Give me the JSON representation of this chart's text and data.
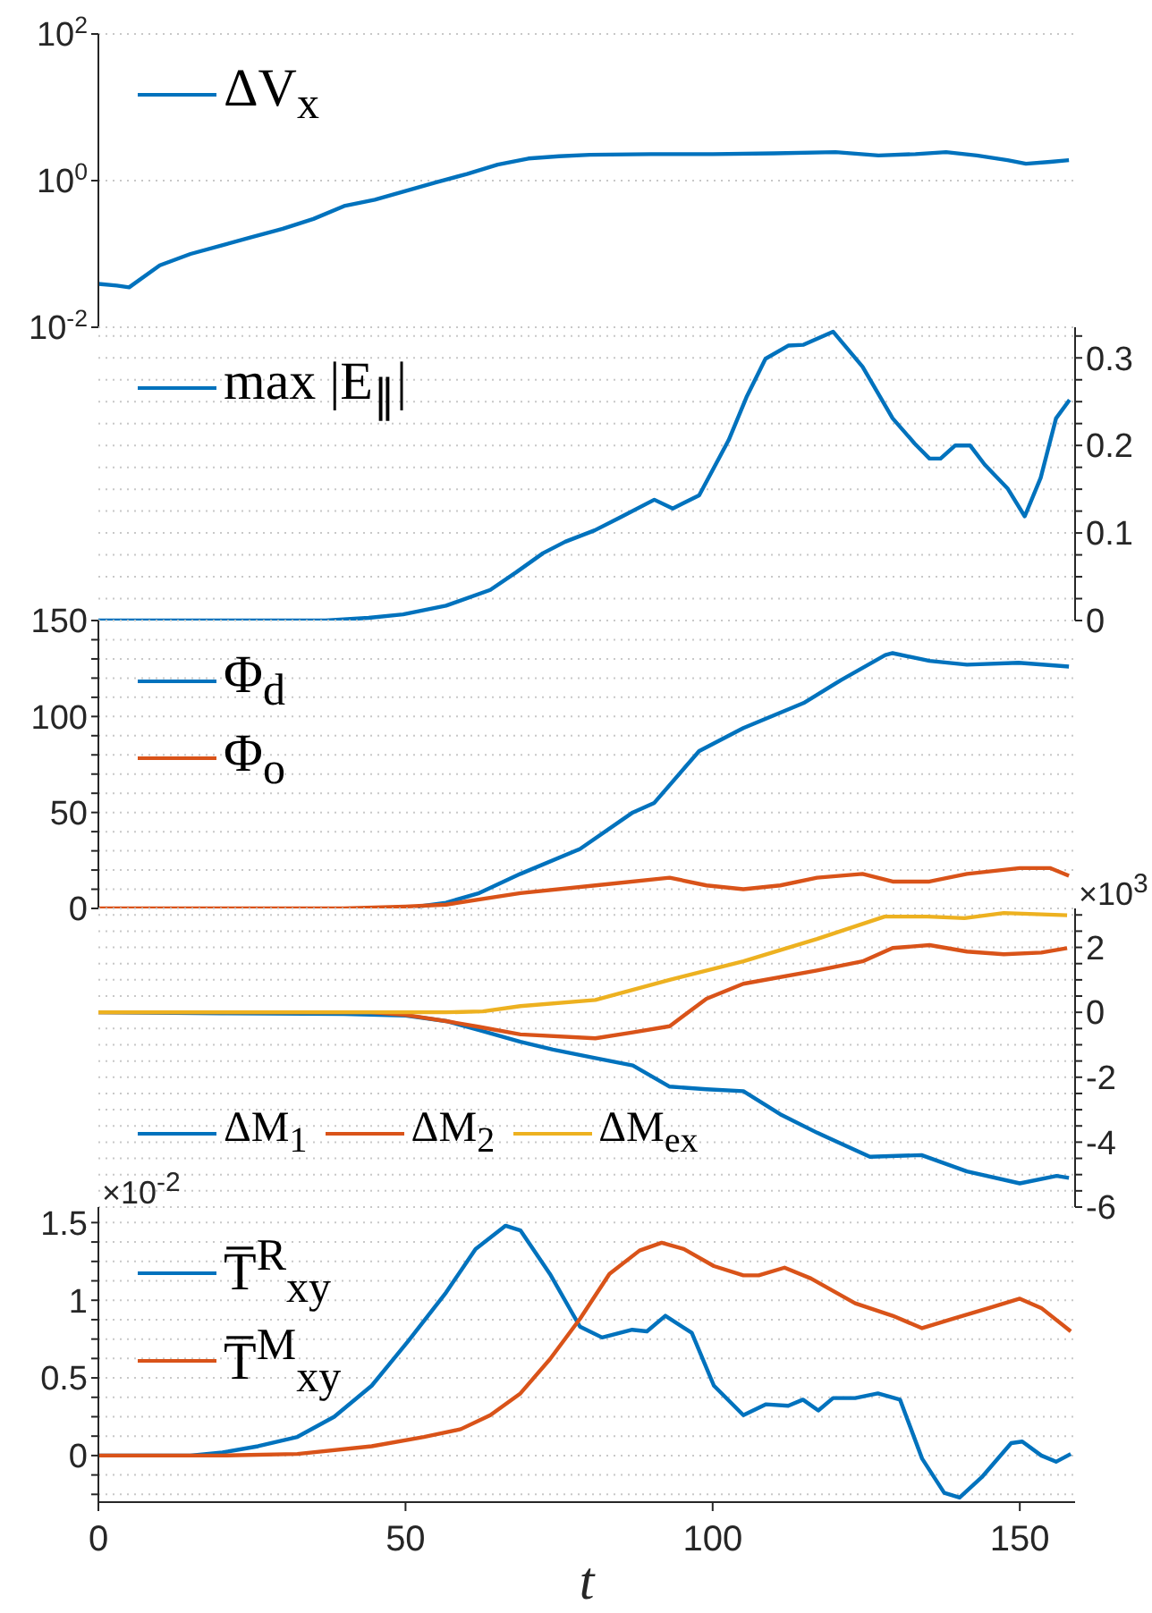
{
  "chart_data": [
    {
      "type": "line",
      "xlim": [
        0,
        159
      ],
      "xticks": [
        0,
        50,
        100,
        150
      ],
      "ylim": [
        0.01,
        100
      ],
      "yticks": [
        {
          "value": 0.01,
          "label": "10$^{-2}$"
        },
        {
          "value": 1,
          "label": "10$^{0}$"
        },
        {
          "value": 100,
          "label": "10$^{2}$"
        }
      ],
      "log": "y",
      "grid": "y",
      "legend": "top left",
      "tick_labels": "y",
      "series": [
        {
          "name": "ΔV$_{x}$",
          "color": "#0072bd",
          "x": [
            0,
            3,
            5,
            10,
            15,
            20,
            25,
            30,
            35,
            40,
            45,
            50,
            55,
            60,
            65,
            70,
            75,
            80,
            90,
            100,
            110,
            120,
            127,
            133,
            138,
            143,
            148,
            151,
            155,
            158
          ],
          "values": [
            0.039,
            0.037,
            0.035,
            0.07,
            0.1,
            0.13,
            0.17,
            0.22,
            0.3,
            0.45,
            0.55,
            0.72,
            0.95,
            1.23,
            1.65,
            2,
            2.15,
            2.25,
            2.3,
            2.3,
            2.35,
            2.45,
            2.2,
            2.3,
            2.45,
            2.2,
            1.9,
            1.7,
            1.8,
            1.9
          ]
        }
      ]
    },
    {
      "type": "line",
      "xlim": [
        0,
        159
      ],
      "xticks": [
        0,
        50,
        100,
        150
      ],
      "ylim": [
        0,
        0.335
      ],
      "yticks": [
        0,
        {
          "value": 0.025,
          "label": null
        },
        {
          "value": 0.05,
          "label": null
        },
        {
          "value": 0.075,
          "label": null
        },
        0.1,
        {
          "value": 0.125,
          "label": null
        },
        {
          "value": 0.15,
          "label": null
        },
        {
          "value": 0.175,
          "label": null
        },
        0.2,
        {
          "value": 0.225,
          "label": null
        },
        {
          "value": 0.25,
          "label": null
        },
        {
          "value": 0.275,
          "label": null
        },
        0.3,
        {
          "value": 0.325,
          "label": null
        }
      ],
      "grid": "y",
      "legend": "top left",
      "tick_labels": "y",
      "series": [
        {
          "name": "max |E$_{∥}$|",
          "color": "#0072bd",
          "x": [
            0,
            37,
            44,
            49.6,
            56.6,
            63.8,
            68,
            72.4,
            76,
            80.8,
            85,
            90.5,
            93.5,
            97.8,
            102.6,
            105.5,
            108.6,
            112.3,
            114.8,
            119.6,
            124.4,
            129.3,
            132.9,
            135.3,
            137.1,
            139.5,
            141.9,
            144.3,
            148,
            150.8,
            153.4,
            155.9,
            158.1
          ],
          "values": [
            0,
            0,
            0.003,
            0.007,
            0.017,
            0.035,
            0.055,
            0.077,
            0.09,
            0.103,
            0.118,
            0.138,
            0.128,
            0.143,
            0.206,
            0.255,
            0.299,
            0.314,
            0.315,
            0.33,
            0.29,
            0.231,
            0.202,
            0.185,
            0.185,
            0.2,
            0.2,
            0.178,
            0.151,
            0.119,
            0.163,
            0.231,
            0.252
          ]
        }
      ]
    },
    {
      "type": "line",
      "xlim": [
        0,
        159
      ],
      "xticks": [
        0,
        50,
        100,
        150
      ],
      "ylim": [
        0,
        150
      ],
      "yticks": [
        0,
        {
          "value": 10,
          "label": null
        },
        {
          "value": 20,
          "label": null
        },
        {
          "value": 30,
          "label": null
        },
        {
          "value": 40,
          "label": null
        },
        50,
        {
          "value": 60,
          "label": null
        },
        {
          "value": 70,
          "label": null
        },
        {
          "value": 80,
          "label": null
        },
        {
          "value": 90,
          "label": null
        },
        100,
        {
          "value": 110,
          "label": null
        },
        {
          "value": 120,
          "label": null
        },
        {
          "value": 130,
          "label": null
        },
        {
          "value": 140,
          "label": null
        },
        150
      ],
      "grid": "y",
      "legend": "top left",
      "tick_labels": "y",
      "series": [
        {
          "name": "Φ$_{d}$",
          "color": "#0072bd",
          "x": [
            52,
            56.6,
            62,
            68.7,
            78.4,
            87,
            90.5,
            97.8,
            105,
            114.8,
            120.9,
            128.1,
            129.3,
            135.3,
            141.4,
            149.8,
            158
          ],
          "values": [
            1,
            3,
            8,
            18,
            31,
            50,
            55,
            82,
            94,
            107,
            119,
            132,
            133,
            129,
            127,
            128,
            126
          ]
        },
        {
          "name": "Φ$_{o}$",
          "color": "#d95319",
          "x": [
            0,
            40,
            50,
            56.6,
            68.7,
            80.9,
            93,
            99,
            105,
            111,
            117,
            124.4,
            129.3,
            135.3,
            141.4,
            150,
            155,
            158
          ],
          "values": [
            0,
            0,
            1,
            2,
            8,
            12,
            16,
            12,
            10,
            12,
            16,
            18,
            14,
            14,
            18,
            21,
            21,
            17
          ]
        }
      ]
    },
    {
      "type": "line",
      "xlim": [
        0,
        159
      ],
      "xticks": [
        0,
        50,
        100,
        150
      ],
      "ylim": [
        -6,
        3.2
      ],
      "yticks": [
        -6,
        {
          "value": -5.5,
          "label": null
        },
        {
          "value": -5,
          "label": null
        },
        {
          "value": -4.5,
          "label": null
        },
        -4,
        {
          "value": -3.5,
          "label": null
        },
        {
          "value": -3,
          "label": null
        },
        {
          "value": -2.5,
          "label": null
        },
        -2,
        {
          "value": -1.5,
          "label": null
        },
        {
          "value": -1,
          "label": null
        },
        {
          "value": -0.5,
          "label": null
        },
        0,
        {
          "value": 0.5,
          "label": null
        },
        {
          "value": 1,
          "label": null
        },
        {
          "value": 1.5,
          "label": null
        },
        2,
        {
          "value": 2.5,
          "label": null
        },
        {
          "value": 3,
          "label": null
        }
      ],
      "grid": "y",
      "legend": "bottom left",
      "tick_labels": "y",
      "annotations": [
        "×10$^{3}$"
      ],
      "series": [
        {
          "name": "ΔM$_{1}$",
          "color": "#0072bd",
          "x": [
            0,
            20,
            40,
            50,
            56.6,
            62,
            68.7,
            74,
            80.9,
            87,
            93,
            99,
            105,
            111,
            117,
            125.6,
            134,
            141.4,
            150,
            156,
            158
          ],
          "values": [
            0,
            -0.03,
            -0.05,
            -0.1,
            -0.27,
            -0.55,
            -0.91,
            -1.15,
            -1.41,
            -1.64,
            -2.29,
            -2.37,
            -2.43,
            -3.14,
            -3.71,
            -4.45,
            -4.4,
            -4.9,
            -5.27,
            -5.04,
            -5.1
          ]
        },
        {
          "name": "ΔM$_{2}$",
          "color": "#d95319",
          "x": [
            0,
            40,
            44.4,
            50,
            56.6,
            62,
            68.7,
            80.9,
            87,
            93,
            99,
            105,
            117,
            124.4,
            129.3,
            135.3,
            141.4,
            147.4,
            153.5,
            157.7
          ],
          "values": [
            0,
            0,
            0,
            -0.08,
            -0.27,
            -0.45,
            -0.68,
            -0.8,
            -0.62,
            -0.43,
            0.42,
            0.88,
            1.29,
            1.57,
            1.98,
            2.07,
            1.87,
            1.79,
            1.84,
            1.98
          ]
        },
        {
          "name": "ΔM$_{ex}$",
          "color": "#edb120",
          "x": [
            0,
            40,
            56.6,
            62.6,
            68.7,
            80.9,
            93,
            105,
            117,
            128,
            135,
            141,
            147.4,
            157.7
          ],
          "values": [
            0,
            0,
            0,
            0.03,
            0.19,
            0.38,
            1,
            1.57,
            2.26,
            2.95,
            2.95,
            2.9,
            3.06,
            2.99
          ]
        }
      ]
    },
    {
      "type": "line",
      "xlim": [
        0,
        159
      ],
      "xticks": [
        0,
        50,
        100,
        150
      ],
      "ylim": [
        -0.3,
        1.6
      ],
      "yticks": [
        {
          "value": -0.25,
          "label": null
        },
        {
          "value": -0.125,
          "label": null
        },
        0,
        {
          "value": 0.125,
          "label": null
        },
        {
          "value": 0.25,
          "label": null
        },
        {
          "value": 0.375,
          "label": null
        },
        0.5,
        {
          "value": 0.625,
          "label": null
        },
        {
          "value": 0.75,
          "label": null
        },
        {
          "value": 0.875,
          "label": null
        },
        1,
        {
          "value": 1.125,
          "label": null
        },
        {
          "value": 1.25,
          "label": null
        },
        {
          "value": 1.375,
          "label": null
        },
        1.5
      ],
      "grid": "y",
      "legend": "top left",
      "xlabel": "t",
      "annotations": [
        "×10$^{-2}$"
      ],
      "series": [
        {
          "name": "T̅$^{R}$$_{xy}$",
          "color": "#0072bd",
          "x": [
            0,
            15,
            20.2,
            26,
            32.4,
            38.4,
            44.5,
            50.5,
            56.6,
            61.4,
            66.3,
            68.7,
            73.5,
            78.4,
            82,
            86.9,
            89.3,
            92.3,
            96.6,
            100.2,
            105,
            108.7,
            112.3,
            114.7,
            117.2,
            119.6,
            123.2,
            126.9,
            130.5,
            134.1,
            137.7,
            140.2,
            143.8,
            148.6,
            150.4,
            153.5,
            155.9,
            158.3
          ],
          "values": [
            0,
            0,
            0.02,
            0.06,
            0.12,
            0.25,
            0.45,
            0.74,
            1.05,
            1.33,
            1.48,
            1.45,
            1.17,
            0.83,
            0.76,
            0.81,
            0.8,
            0.9,
            0.79,
            0.45,
            0.26,
            0.33,
            0.32,
            0.36,
            0.29,
            0.37,
            0.37,
            0.4,
            0.36,
            -0.02,
            -0.24,
            -0.27,
            -0.14,
            0.08,
            0.09,
            0,
            -0.04,
            0.01
          ]
        },
        {
          "name": "T̅$^{M}$$_{xy}$",
          "color": "#d95319",
          "x": [
            0,
            20,
            32.4,
            44.5,
            53,
            59,
            63.8,
            68.7,
            73.5,
            78.4,
            83.2,
            88.1,
            91.7,
            95.3,
            100.2,
            105,
            107.5,
            111.7,
            116,
            123.2,
            129.3,
            134.1,
            139,
            145,
            150,
            153.5,
            158.3
          ],
          "values": [
            0,
            0,
            0.01,
            0.06,
            0.12,
            0.17,
            0.26,
            0.4,
            0.62,
            0.88,
            1.17,
            1.32,
            1.37,
            1.33,
            1.22,
            1.16,
            1.16,
            1.21,
            1.14,
            0.98,
            0.9,
            0.82,
            0.88,
            0.95,
            1.01,
            0.95,
            0.8
          ]
        }
      ]
    }
  ]
}
